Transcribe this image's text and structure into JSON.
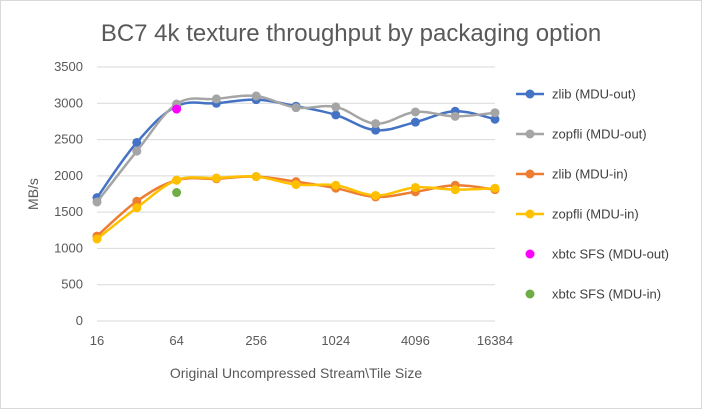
{
  "chart_data": {
    "type": "line",
    "title": "BC7 4k texture throughput by packaging option",
    "xlabel": "Original Uncompressed Stream\\Tile Size",
    "ylabel": "MB/s",
    "x_scale": "log2",
    "x_ticks": [
      16,
      64,
      256,
      1024,
      4096,
      16384
    ],
    "xlim": [
      16,
      16384
    ],
    "ylim": [
      0,
      3500
    ],
    "y_ticks": [
      0,
      500,
      1000,
      1500,
      2000,
      2500,
      3000,
      3500
    ],
    "grid": "horizontal",
    "legend_position": "right",
    "series": [
      {
        "name": "zlib (MDU-out)",
        "color": "#4472c4",
        "x": [
          16,
          32,
          64,
          128,
          256,
          512,
          1024,
          2048,
          4096,
          8192,
          16384
        ],
        "y": [
          1700,
          2460,
          2960,
          3000,
          3050,
          2960,
          2840,
          2630,
          2740,
          2890,
          2780
        ]
      },
      {
        "name": "zopfli (MDU-out)",
        "color": "#a5a5a5",
        "x": [
          16,
          32,
          64,
          128,
          256,
          512,
          1024,
          2048,
          4096,
          8192,
          16384
        ],
        "y": [
          1640,
          2340,
          2990,
          3060,
          3100,
          2940,
          2950,
          2720,
          2880,
          2820,
          2870
        ]
      },
      {
        "name": "zlib (MDU-in)",
        "color": "#ed7d31",
        "x": [
          16,
          32,
          64,
          128,
          256,
          512,
          1024,
          2048,
          4096,
          8192,
          16384
        ],
        "y": [
          1170,
          1650,
          1940,
          1960,
          1990,
          1920,
          1830,
          1710,
          1780,
          1870,
          1810
        ]
      },
      {
        "name": "zopfli (MDU-in)",
        "color": "#ffc000",
        "x": [
          16,
          32,
          64,
          128,
          256,
          512,
          1024,
          2048,
          4096,
          8192,
          16384
        ],
        "y": [
          1130,
          1560,
          1940,
          1970,
          1990,
          1880,
          1870,
          1730,
          1840,
          1810,
          1830
        ]
      },
      {
        "name": "xbtc SFS (MDU-out)",
        "color": "#ff00ff",
        "marker_only": true,
        "x": [
          64
        ],
        "y": [
          2920
        ]
      },
      {
        "name": "xbtc SFS (MDU-in)",
        "color": "#70ad47",
        "marker_only": true,
        "x": [
          64
        ],
        "y": [
          1770
        ]
      }
    ]
  }
}
